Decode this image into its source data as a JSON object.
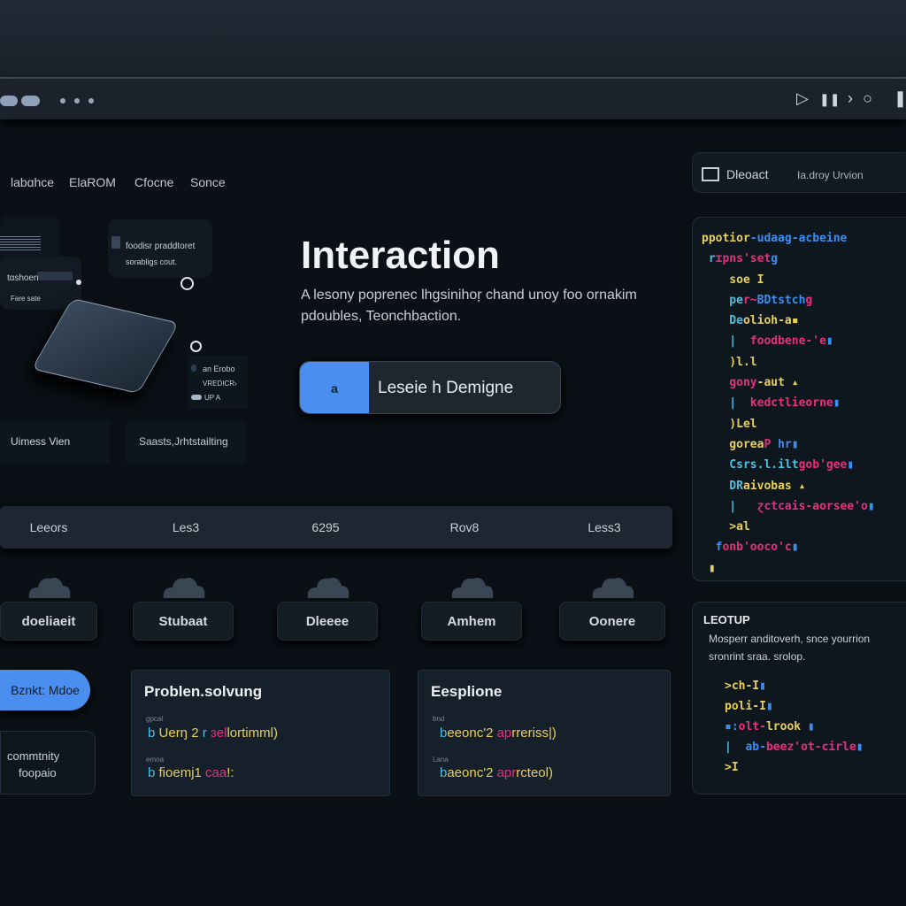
{
  "toolbar": {
    "icons": [
      "play-icon",
      "pause-icon",
      "forward-icon",
      "record-icon",
      "pause-icon"
    ],
    "glyphs": [
      "▷",
      "❚❚",
      "›",
      "○",
      "❚"
    ]
  },
  "nav": {
    "items": [
      "labɑhce",
      "ElaROM",
      "Cfocne",
      "Sonce"
    ]
  },
  "illustration": {
    "note_line1": "foodisr praddtoret",
    "note_line2": "sorabligs cout.",
    "tag1": "tɑshoen",
    "tag2": "Fare sate",
    "legend": [
      "an Erobo",
      "VREDICR›",
      "UP A"
    ],
    "caption_left": "Uimess Vien",
    "caption_right": "Saasts,Jrhtstailting"
  },
  "hero": {
    "title": "Interaction",
    "subtitle_line1": "A lesony popreneс lhgsinihoŗ  chand unoy foo ornakim",
    "subtitle_line2": "pdoubles, Teonchbaction.",
    "cta_icon": "a",
    "cta_label": "Leseie h Demigne"
  },
  "right_header": {
    "title": "Dleoact",
    "subtitle": "Ia.droy Urvion"
  },
  "code_panel": {
    "lines": [
      [
        [
          "y",
          "pp"
        ],
        [
          "y",
          "otior"
        ],
        [
          "b",
          "-udaag-acbeine"
        ]
      ],
      [
        [
          "c",
          " r"
        ],
        [
          "p",
          "ɪpns'set"
        ],
        [
          "b",
          "g"
        ]
      ],
      [
        [
          "y",
          "    soe I"
        ]
      ],
      [
        [
          "c",
          "    pe"
        ],
        [
          "p",
          "r~"
        ],
        [
          "b",
          "BDtstch"
        ],
        [
          "p",
          "g"
        ]
      ],
      [
        [
          "c",
          "    De"
        ],
        [
          "y",
          "olioh-a▪"
        ]
      ],
      [
        [
          "c",
          "    |  "
        ],
        [
          "p",
          "foodbene-'e"
        ],
        [
          "b",
          "▮"
        ]
      ],
      [
        [
          "y",
          "    )l.l"
        ]
      ],
      [
        [
          "p",
          "    gony"
        ],
        [
          "y",
          "-aut ▴"
        ]
      ],
      [
        [
          "c",
          "    |  "
        ],
        [
          "p",
          "kedctlieorne"
        ],
        [
          "b",
          "▮"
        ]
      ],
      [
        [
          "y",
          "    )Lel"
        ]
      ],
      [
        [
          "y",
          "    gorea"
        ],
        [
          "p",
          "P"
        ],
        [
          "b",
          " hr▮"
        ]
      ],
      [
        [
          "c",
          "    Csrs.l.ilt"
        ],
        [
          "p",
          "gob'gee"
        ],
        [
          "b",
          "▮"
        ]
      ],
      [
        [
          "c",
          "    DR"
        ],
        [
          "y",
          "aivobas ▴"
        ]
      ],
      [
        [
          "c",
          "    |   "
        ],
        [
          "p",
          "ɀctcais-aorsee'o"
        ],
        [
          "b",
          "▮"
        ]
      ],
      [
        [
          "y",
          "    >al"
        ]
      ],
      [
        [
          "b",
          "  f"
        ],
        [
          "p",
          "onb'ooco'c"
        ],
        [
          "b",
          "▮"
        ]
      ],
      [
        [
          "y",
          " ▮"
        ]
      ]
    ]
  },
  "table": {
    "headers": [
      "Leeors",
      "Les3",
      "6295",
      "Rov8",
      "Less3"
    ]
  },
  "chips": [
    "doeliaeit",
    "Stubaat",
    "Dleeee",
    "Amhem",
    "Oonere"
  ],
  "bottom": {
    "mode_button": "Bznkt: Mdoe",
    "community_line1": "commtnity",
    "community_line2": "foopaio",
    "card1": {
      "title": "Problen.solvung",
      "label1": "gpcal",
      "line1": [
        [
          "c",
          "b "
        ],
        [
          "y",
          "Uerŋ 2 "
        ],
        [
          "c",
          "r "
        ],
        [
          "p",
          "ɜel"
        ],
        [
          "y",
          "lortimml)"
        ]
      ],
      "label2": "emoa",
      "line2": [
        [
          "c",
          "b "
        ],
        [
          "y",
          "fioemj1 "
        ],
        [
          "p",
          "caa"
        ],
        [
          "y",
          "!:"
        ]
      ]
    },
    "card2": {
      "title": "Eesplione",
      "label1": "bnd",
      "line1": [
        [
          "c",
          "b"
        ],
        [
          "y",
          "eeonc'2 "
        ],
        [
          "p",
          "ap"
        ],
        [
          "y",
          "rreriss|)"
        ]
      ],
      "label2": "Lana",
      "line2": [
        [
          "c",
          "b"
        ],
        [
          "y",
          "aeonc'2 "
        ],
        [
          "p",
          "apr"
        ],
        [
          "y",
          "rcteol)"
        ]
      ]
    }
  },
  "leotup": {
    "title": "LEOTUP",
    "desc_line1": "Mosperr anditoverh,  snce yourrion",
    "desc_line2": "sronrint sraa. srolop.",
    "lines": [
      [
        [
          "y",
          ">ch-I"
        ],
        [
          "b",
          "▮"
        ]
      ],
      [
        [
          "y",
          "poli-I"
        ],
        [
          "b",
          "▮"
        ]
      ],
      [
        [
          "b",
          "▪:"
        ],
        [
          "p",
          "olt-"
        ],
        [
          "y",
          "lrook"
        ],
        [
          "b",
          " ▮"
        ]
      ],
      [
        [
          "c",
          "|  "
        ],
        [
          "b",
          "ab-"
        ],
        [
          "p",
          "beez'ot-cirle"
        ],
        [
          "b",
          "▮"
        ]
      ],
      [
        [
          "y",
          ">I"
        ]
      ]
    ]
  },
  "colors": {
    "accent": "#4a8ef0",
    "code_yellow": "#e8cf5a",
    "code_pink": "#e3307f",
    "code_blue": "#3a8ef0",
    "background": "#0a1015"
  }
}
